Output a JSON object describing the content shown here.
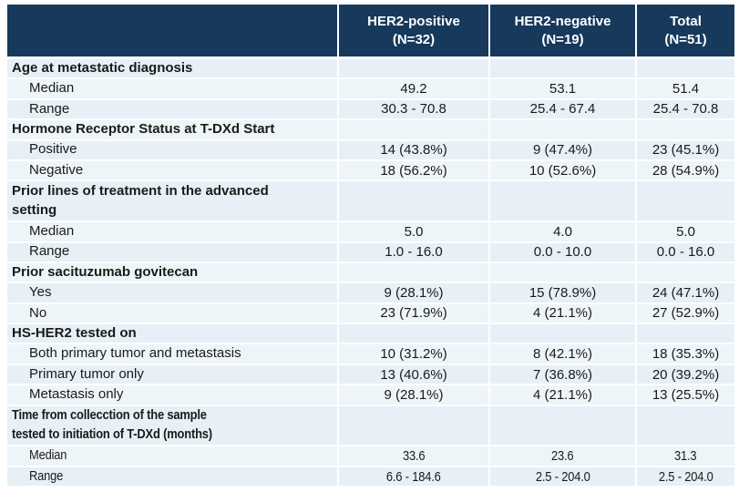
{
  "header": {
    "columns": [
      {
        "title": "HER2-positive",
        "n": "(N=32)"
      },
      {
        "title": "HER2-negative",
        "n": "(N=19)"
      },
      {
        "title": "Total",
        "n": "(N=51)"
      }
    ]
  },
  "table": {
    "rows": [
      {
        "type": "category",
        "label": "Age at metastatic diagnosis",
        "values": [
          "",
          "",
          ""
        ]
      },
      {
        "type": "sub",
        "label": "Median",
        "values": [
          "49.2",
          "53.1",
          "51.4"
        ]
      },
      {
        "type": "sub",
        "label": "Range",
        "values": [
          "30.3 - 70.8",
          "25.4 - 67.4",
          "25.4 - 70.8"
        ]
      },
      {
        "type": "category",
        "label": "Hormone Receptor Status at T-DXd Start",
        "values": [
          "",
          "",
          ""
        ]
      },
      {
        "type": "sub",
        "label": "Positive",
        "values": [
          "14 (43.8%)",
          "9 (47.4%)",
          "23 (45.1%)"
        ]
      },
      {
        "type": "sub",
        "label": "Negative",
        "values": [
          "18 (56.2%)",
          "10 (52.6%)",
          "28 (54.9%)"
        ]
      },
      {
        "type": "category",
        "label": "Prior lines of treatment in the advanced\nsetting",
        "double": true,
        "values": [
          "",
          "",
          ""
        ]
      },
      {
        "type": "sub",
        "label": "Median",
        "values": [
          "5.0",
          "4.0",
          "5.0"
        ]
      },
      {
        "type": "sub",
        "label": "Range",
        "values": [
          "1.0 - 16.0",
          "0.0 - 10.0",
          "0.0 - 16.0"
        ]
      },
      {
        "type": "category",
        "label": "Prior sacituzumab govitecan",
        "values": [
          "",
          "",
          ""
        ]
      },
      {
        "type": "sub",
        "label": "Yes",
        "values": [
          "9 (28.1%)",
          "15 (78.9%)",
          "24 (47.1%)"
        ]
      },
      {
        "type": "sub",
        "label": "No",
        "values": [
          "23 (71.9%)",
          "4 (21.1%)",
          "27 (52.9%)"
        ]
      },
      {
        "type": "category",
        "label": "HS-HER2 tested on",
        "values": [
          "",
          "",
          ""
        ]
      },
      {
        "type": "sub",
        "label": "Both primary tumor and metastasis",
        "values": [
          "10 (31.2%)",
          "8 (42.1%)",
          "18 (35.3%)"
        ]
      },
      {
        "type": "sub",
        "label": "Primary tumor only",
        "values": [
          "13 (40.6%)",
          "7 (36.8%)",
          "20 (39.2%)"
        ]
      },
      {
        "type": "sub",
        "label": "Metastasis only",
        "values": [
          "9 (28.1%)",
          "4 (21.1%)",
          "13 (25.5%)"
        ]
      },
      {
        "type": "category",
        "label": "Time from collecction of the sample\ntested to initiation of T-DXd (months)",
        "double": true,
        "condensed": true,
        "values": [
          "",
          "",
          ""
        ]
      },
      {
        "type": "sub",
        "label": "Median",
        "condensed": true,
        "values": [
          "33.6",
          "23.6",
          "31.3"
        ]
      },
      {
        "type": "sub",
        "label": "Range",
        "condensed": true,
        "values": [
          "6.6 - 184.6",
          "2.5 - 204.0",
          "2.5 - 204.0"
        ]
      }
    ]
  },
  "colors": {
    "header_bg": "#16395c",
    "header_text": "#ffffff",
    "row_blue": "#e6f0f6",
    "row_light": "#eef5f8",
    "body_text": "#1a1a1a"
  },
  "chart_data": {
    "type": "table",
    "title": "Patient characteristics by HER2 status",
    "columns": [
      "",
      "HER2-positive (N=32)",
      "HER2-negative (N=19)",
      "Total (N=51)"
    ],
    "rows": [
      [
        "Age at metastatic diagnosis",
        "",
        "",
        ""
      ],
      [
        "Median",
        "49.2",
        "53.1",
        "51.4"
      ],
      [
        "Range",
        "30.3 - 70.8",
        "25.4 - 67.4",
        "25.4 - 70.8"
      ],
      [
        "Hormone Receptor Status at T-DXd Start",
        "",
        "",
        ""
      ],
      [
        "Positive",
        "14 (43.8%)",
        "9 (47.4%)",
        "23 (45.1%)"
      ],
      [
        "Negative",
        "18 (56.2%)",
        "10 (52.6%)",
        "28 (54.9%)"
      ],
      [
        "Prior lines of treatment in the advanced setting",
        "",
        "",
        ""
      ],
      [
        "Median",
        "5.0",
        "4.0",
        "5.0"
      ],
      [
        "Range",
        "1.0 - 16.0",
        "0.0 - 10.0",
        "0.0 - 16.0"
      ],
      [
        "Prior sacituzumab govitecan",
        "",
        "",
        ""
      ],
      [
        "Yes",
        "9 (28.1%)",
        "15 (78.9%)",
        "24 (47.1%)"
      ],
      [
        "No",
        "23 (71.9%)",
        "4 (21.1%)",
        "27 (52.9%)"
      ],
      [
        "HS-HER2 tested on",
        "",
        "",
        ""
      ],
      [
        "Both primary tumor and metastasis",
        "10 (31.2%)",
        "8 (42.1%)",
        "18 (35.3%)"
      ],
      [
        "Primary tumor only",
        "13 (40.6%)",
        "7 (36.8%)",
        "20 (39.2%)"
      ],
      [
        "Metastasis only",
        "9 (28.1%)",
        "4 (21.1%)",
        "13 (25.5%)"
      ],
      [
        "Time from collecction of the sample tested to initiation of T-DXd (months)",
        "",
        "",
        ""
      ],
      [
        "Median",
        "33.6",
        "23.6",
        "31.3"
      ],
      [
        "Range",
        "6.6 - 184.6",
        "2.5 - 204.0",
        "2.5 - 204.0"
      ]
    ]
  }
}
